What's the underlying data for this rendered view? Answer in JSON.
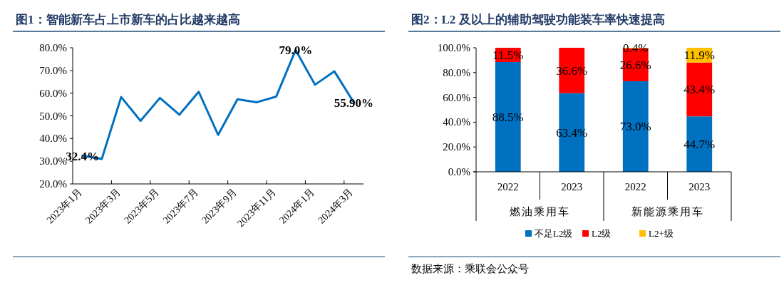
{
  "chart_data": [
    {
      "type": "line",
      "title": "图1：智能新车占上市新车的占比越来越高",
      "categories": [
        "2023年1月",
        null,
        "2023年3月",
        null,
        "2023年5月",
        null,
        "2023年7月",
        null,
        "2023年9月",
        null,
        "2023年11月",
        null,
        "2024年1月",
        null,
        "2024年3月"
      ],
      "values": [
        32.4,
        31.0,
        58.3,
        47.8,
        57.9,
        50.5,
        60.6,
        41.6,
        57.3,
        56.0,
        58.5,
        79.0,
        63.7,
        69.6,
        55.9
      ],
      "value_labels": [
        "32.4%",
        null,
        null,
        null,
        null,
        null,
        null,
        null,
        null,
        null,
        null,
        "79.0%",
        null,
        null,
        "55.90%"
      ],
      "color": "#0070c0",
      "ylim": [
        20,
        80
      ],
      "yticks": [
        {
          "value": 20,
          "label": "20.0%"
        },
        {
          "value": 30,
          "label": "30.0%"
        },
        {
          "value": 40,
          "label": "40.0%"
        },
        {
          "value": 50,
          "label": "50.0%"
        },
        {
          "value": 60,
          "label": "60.0%"
        },
        {
          "value": 70,
          "label": "70.0%"
        },
        {
          "value": 80,
          "label": "80.0%"
        }
      ]
    },
    {
      "type": "bar",
      "stacked": true,
      "title": "图2：L2 及以上的辅助驾驶功能装车率快速提高",
      "categories": [
        "2022",
        "2023",
        "2022",
        "2023"
      ],
      "series": [
        {
          "name": "不足L2级",
          "color": "#0070c0",
          "values": [
            88.5,
            63.4,
            73.0,
            44.7
          ],
          "value_labels": [
            "88.5%",
            "63.4%",
            "73.0%",
            "44.7%"
          ]
        },
        {
          "name": "L2级",
          "color": "#ff0000",
          "values": [
            11.5,
            36.6,
            26.6,
            43.4
          ],
          "value_labels": [
            "11.5%",
            "36.6%",
            "26.6%",
            "43.4%"
          ]
        },
        {
          "name": "L2+级",
          "color": "#ffc000",
          "values": [
            null,
            null,
            0.4,
            11.9
          ],
          "value_labels": [
            null,
            null,
            "0.4%",
            "11.9%"
          ]
        }
      ],
      "legend": "bottom",
      "ylim": [
        0,
        100
      ],
      "yticks": [
        {
          "value": 0,
          "label": "0.0%"
        },
        {
          "value": 20,
          "label": "20.0%"
        },
        {
          "value": 40,
          "label": "40.0%"
        },
        {
          "value": 60,
          "label": "60.0%"
        },
        {
          "value": 80,
          "label": "80.0%"
        },
        {
          "value": 100,
          "label": "100.0%"
        }
      ],
      "annotations": [
        "燃油乘用车",
        "新能源乘用车",
        "数据来源：乘联会公众号"
      ]
    }
  ]
}
